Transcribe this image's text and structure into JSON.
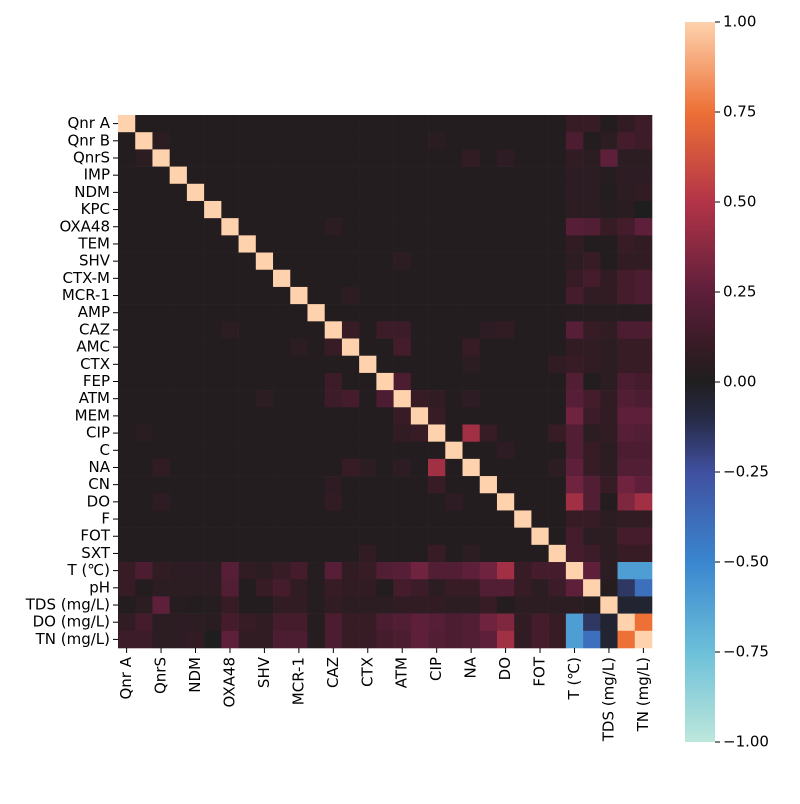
{
  "chart_data": {
    "type": "heatmap",
    "x_categories": [
      "Qnr A",
      null,
      "QnrS",
      null,
      "NDM",
      null,
      "OXA48",
      null,
      "SHV",
      null,
      "MCR-1",
      null,
      "CAZ",
      null,
      "CTX",
      null,
      "ATM",
      null,
      "CIP",
      null,
      "NA",
      null,
      "DO",
      null,
      "FOT",
      null,
      "T  (℃)",
      null,
      "TDS (mg/L)",
      null,
      "TN (mg/L)"
    ],
    "y_categories": [
      "Qnr A",
      "Qnr B",
      "QnrS",
      "IMP",
      "NDM",
      "KPC",
      "OXA48",
      "TEM",
      "SHV",
      "CTX-M",
      "MCR-1",
      "AMP",
      "CAZ",
      "AMC",
      "CTX",
      "FEP",
      "ATM",
      "MEM",
      "CIP",
      "C",
      "NA",
      "CN",
      "DO",
      "F",
      "FOT",
      "SXT",
      "T  (℃)",
      "pH",
      "TDS (mg/L)",
      "DO (mg/L)",
      "TN (mg/L)"
    ],
    "values": [
      [
        1,
        0.02,
        0.02,
        0.02,
        0.02,
        0.02,
        0.02,
        0.02,
        0.02,
        0.02,
        0.02,
        0.02,
        0.02,
        0.02,
        0.02,
        0.02,
        0.02,
        0.02,
        0.02,
        0.02,
        0.02,
        0.02,
        0.02,
        0.02,
        0.02,
        0.02,
        0.1,
        0.1,
        0.02,
        0.08,
        0.12
      ],
      [
        0.02,
        1,
        0.05,
        0.02,
        0.02,
        0.02,
        0.02,
        0.02,
        0.02,
        0.02,
        0.02,
        0.02,
        0.02,
        0.02,
        0.02,
        0.02,
        0.02,
        0.02,
        0.04,
        0.02,
        0.02,
        0.02,
        0.02,
        0.02,
        0.02,
        0.02,
        0.18,
        0.02,
        0.05,
        0.15,
        0.12
      ],
      [
        0.02,
        0.05,
        1,
        0.02,
        0.02,
        0.02,
        0.02,
        0.02,
        0.02,
        0.02,
        0.02,
        0.02,
        0.02,
        0.02,
        0.02,
        0.02,
        0.02,
        0.02,
        0.02,
        0.02,
        0.08,
        0.02,
        0.06,
        0.02,
        0.02,
        0.02,
        0.08,
        0.05,
        0.25,
        0.05,
        0.05
      ],
      [
        0.02,
        0.02,
        0.02,
        1,
        0.02,
        0.02,
        0.02,
        0.02,
        0.02,
        0.02,
        0.02,
        0.02,
        0.02,
        0.02,
        0.02,
        0.02,
        0.02,
        0.02,
        0.02,
        0.02,
        0.02,
        0.02,
        0.02,
        0.02,
        0.02,
        0.02,
        0.06,
        0.05,
        0.03,
        0.06,
        0.06
      ],
      [
        0.02,
        0.02,
        0.02,
        0.02,
        1,
        0.02,
        0.02,
        0.02,
        0.02,
        0.02,
        0.02,
        0.02,
        0.02,
        0.02,
        0.02,
        0.02,
        0.02,
        0.02,
        0.02,
        0.02,
        0.02,
        0.02,
        0.02,
        0.02,
        0.02,
        0.02,
        0.06,
        0.05,
        0.02,
        0.05,
        0.08
      ],
      [
        0.02,
        0.02,
        0.02,
        0.02,
        0.02,
        1,
        0.02,
        0.02,
        0.02,
        0.02,
        0.02,
        0.02,
        0.02,
        0.02,
        0.02,
        0.02,
        0.02,
        0.02,
        0.02,
        0.02,
        0.02,
        0.02,
        0.02,
        0.02,
        0.02,
        0.02,
        0.05,
        0.05,
        0.03,
        0.04,
        0
      ],
      [
        0.02,
        0.02,
        0.02,
        0.02,
        0.02,
        0.02,
        1,
        0.02,
        0.02,
        0.02,
        0.02,
        0.02,
        0.05,
        0.02,
        0.02,
        0.02,
        0.02,
        0.02,
        0.02,
        0.02,
        0.02,
        0.02,
        0.02,
        0.02,
        0.02,
        0.02,
        0.22,
        0.2,
        0.1,
        0.15,
        0.25
      ],
      [
        0.02,
        0.02,
        0.02,
        0.02,
        0.02,
        0.02,
        0.02,
        1,
        0.02,
        0.02,
        0.02,
        0.02,
        0.02,
        0.02,
        0.02,
        0.02,
        0.02,
        0.02,
        0.02,
        0.02,
        0.02,
        0.02,
        0.02,
        0.02,
        0.02,
        0.02,
        0.08,
        0.02,
        0.02,
        0.1,
        0.08
      ],
      [
        0.02,
        0.02,
        0.02,
        0.02,
        0.02,
        0.02,
        0.02,
        0.02,
        1,
        0.02,
        0.02,
        0.02,
        0.02,
        0.02,
        0.02,
        0.02,
        0.05,
        0.02,
        0.02,
        0.02,
        0.02,
        0.02,
        0.02,
        0.02,
        0.02,
        0.02,
        0.05,
        0.1,
        0.02,
        0.08,
        0.08
      ],
      [
        0.02,
        0.02,
        0.02,
        0.02,
        0.02,
        0.02,
        0.02,
        0.02,
        0.02,
        1,
        0.02,
        0.02,
        0.02,
        0.02,
        0.02,
        0.02,
        0.02,
        0.02,
        0.02,
        0.02,
        0.02,
        0.02,
        0.02,
        0.02,
        0.02,
        0.02,
        0.1,
        0.15,
        0.08,
        0.15,
        0.18
      ],
      [
        0.02,
        0.02,
        0.02,
        0.02,
        0.02,
        0.02,
        0.02,
        0.02,
        0.02,
        0.02,
        1,
        0.02,
        0.02,
        0.05,
        0.02,
        0.02,
        0.02,
        0.02,
        0.02,
        0.02,
        0.02,
        0.02,
        0.02,
        0.02,
        0.02,
        0.02,
        0.15,
        0.08,
        0.08,
        0.15,
        0.18
      ],
      [
        0.02,
        0.02,
        0.02,
        0.02,
        0.02,
        0.02,
        0.02,
        0.02,
        0.02,
        0.02,
        0.02,
        1,
        0.02,
        0.02,
        0.02,
        0.02,
        0.02,
        0.02,
        0.02,
        0.02,
        0.02,
        0.02,
        0.02,
        0.02,
        0.02,
        0.02,
        0.03,
        0.03,
        0.03,
        0.03,
        0.03
      ],
      [
        0.02,
        0.02,
        0.02,
        0.02,
        0.02,
        0.02,
        0.05,
        0.02,
        0.02,
        0.02,
        0.02,
        0.02,
        1,
        0.1,
        0.02,
        0.12,
        0.12,
        0.02,
        0.02,
        0.02,
        0.02,
        0.06,
        0.08,
        0.02,
        0.02,
        0.02,
        0.22,
        0.1,
        0.08,
        0.18,
        0.18
      ],
      [
        0.02,
        0.02,
        0.02,
        0.02,
        0.02,
        0.02,
        0.02,
        0.02,
        0.02,
        0.02,
        0.05,
        0.02,
        0.1,
        1,
        0.02,
        0.02,
        0.15,
        0.02,
        0.02,
        0.02,
        0.1,
        0.02,
        0.02,
        0.02,
        0.02,
        0.02,
        0.08,
        0.08,
        0.05,
        0.1,
        0.1
      ],
      [
        0.02,
        0.02,
        0.02,
        0.02,
        0.02,
        0.02,
        0.02,
        0.02,
        0.02,
        0.02,
        0.02,
        0.02,
        0.02,
        0.02,
        1,
        0.02,
        0.02,
        0.02,
        0.02,
        0.02,
        0.05,
        0.02,
        0.02,
        0.02,
        0.02,
        0.08,
        0.1,
        0.08,
        0.05,
        0.1,
        0.1
      ],
      [
        0.02,
        0.02,
        0.02,
        0.02,
        0.02,
        0.02,
        0.02,
        0.02,
        0.02,
        0.02,
        0.02,
        0.02,
        0.12,
        0.02,
        0.02,
        1,
        0.18,
        0.02,
        0.02,
        0.02,
        0.02,
        0.02,
        0.02,
        0.02,
        0.02,
        0.02,
        0.2,
        0.02,
        0.05,
        0.18,
        0.15
      ],
      [
        0.02,
        0.02,
        0.02,
        0.02,
        0.02,
        0.02,
        0.02,
        0.02,
        0.05,
        0.02,
        0.02,
        0.02,
        0.12,
        0.15,
        0.02,
        0.18,
        1,
        0.1,
        0.08,
        0.02,
        0.06,
        0.02,
        0.02,
        0.02,
        0.02,
        0.02,
        0.22,
        0.15,
        0.08,
        0.2,
        0.18
      ],
      [
        0.02,
        0.02,
        0.02,
        0.02,
        0.02,
        0.02,
        0.02,
        0.02,
        0.02,
        0.02,
        0.02,
        0.02,
        0.02,
        0.02,
        0.02,
        0.02,
        0.1,
        1,
        0.1,
        0.02,
        0.02,
        0.02,
        0.02,
        0.02,
        0.02,
        0.02,
        0.3,
        0.12,
        0.08,
        0.25,
        0.25
      ],
      [
        0.02,
        0.04,
        0.02,
        0.02,
        0.02,
        0.02,
        0.02,
        0.02,
        0.02,
        0.02,
        0.02,
        0.02,
        0.02,
        0.02,
        0.02,
        0.02,
        0.08,
        0.1,
        1,
        0.02,
        0.45,
        0.1,
        0.02,
        0.02,
        0.02,
        0.1,
        0.2,
        0.05,
        0.08,
        0.22,
        0.2
      ],
      [
        0.02,
        0.02,
        0.02,
        0.02,
        0.02,
        0.02,
        0.02,
        0.02,
        0.02,
        0.02,
        0.02,
        0.02,
        0.02,
        0.02,
        0.02,
        0.02,
        0.02,
        0.02,
        0.02,
        1,
        0.02,
        0.02,
        0.06,
        0.02,
        0.02,
        0.02,
        0.2,
        0.1,
        0.05,
        0.18,
        0.18
      ],
      [
        0.02,
        0.02,
        0.08,
        0.02,
        0.02,
        0.02,
        0.02,
        0.02,
        0.02,
        0.02,
        0.02,
        0.02,
        0.02,
        0.1,
        0.05,
        0.02,
        0.06,
        0.02,
        0.45,
        0.02,
        1,
        0.02,
        0.02,
        0.02,
        0.02,
        0.05,
        0.25,
        0.1,
        0.05,
        0.2,
        0.2
      ],
      [
        0.02,
        0.02,
        0.02,
        0.02,
        0.02,
        0.02,
        0.02,
        0.02,
        0.02,
        0.02,
        0.02,
        0.02,
        0.06,
        0.02,
        0.02,
        0.02,
        0.02,
        0.02,
        0.1,
        0.02,
        0.02,
        1,
        0.02,
        0.02,
        0.02,
        0.02,
        0.3,
        0.2,
        0.1,
        0.3,
        0.25
      ],
      [
        0.02,
        0.02,
        0.06,
        0.02,
        0.02,
        0.02,
        0.02,
        0.02,
        0.02,
        0.02,
        0.02,
        0.02,
        0.08,
        0.02,
        0.02,
        0.02,
        0.02,
        0.02,
        0.02,
        0.06,
        0.02,
        0.02,
        1,
        0.02,
        0.02,
        0.02,
        0.45,
        0.2,
        0.02,
        0.35,
        0.45
      ],
      [
        0.02,
        0.02,
        0.02,
        0.02,
        0.02,
        0.02,
        0.02,
        0.02,
        0.02,
        0.02,
        0.02,
        0.02,
        0.02,
        0.02,
        0.02,
        0.02,
        0.02,
        0.02,
        0.02,
        0.02,
        0.02,
        0.02,
        0.02,
        1,
        0.02,
        0.02,
        0.1,
        0.1,
        0.05,
        0.08,
        0.08
      ],
      [
        0.02,
        0.02,
        0.02,
        0.02,
        0.02,
        0.02,
        0.02,
        0.02,
        0.02,
        0.02,
        0.02,
        0.02,
        0.02,
        0.02,
        0.02,
        0.02,
        0.02,
        0.02,
        0.02,
        0.02,
        0.02,
        0.02,
        0.02,
        0.02,
        1,
        0.02,
        0.15,
        0.05,
        0.05,
        0.15,
        0.15
      ],
      [
        0.02,
        0.02,
        0.02,
        0.02,
        0.02,
        0.02,
        0.02,
        0.02,
        0.02,
        0.02,
        0.02,
        0.02,
        0.02,
        0.02,
        0.08,
        0.02,
        0.02,
        0.02,
        0.1,
        0.02,
        0.05,
        0.02,
        0.02,
        0.02,
        0.02,
        1,
        0.15,
        0.12,
        0.05,
        0.1,
        0.1
      ],
      [
        0.1,
        0.18,
        0.08,
        0.06,
        0.06,
        0.05,
        0.22,
        0.08,
        0.05,
        0.1,
        0.15,
        0.03,
        0.22,
        0.08,
        0.1,
        0.2,
        0.22,
        0.3,
        0.2,
        0.2,
        0.25,
        0.3,
        0.45,
        0.1,
        0.15,
        0.15,
        1,
        0.25,
        0.05,
        -0.6,
        -0.6
      ],
      [
        0.1,
        0.02,
        0.05,
        0.05,
        0.05,
        0.05,
        0.2,
        0.02,
        0.1,
        0.15,
        0.08,
        0.03,
        0.1,
        0.08,
        0.08,
        0.02,
        0.15,
        0.12,
        0.05,
        0.1,
        0.1,
        0.2,
        0.2,
        0.1,
        0.05,
        0.12,
        0.25,
        1,
        0.03,
        -0.15,
        -0.4
      ],
      [
        0.02,
        0.05,
        0.25,
        0.03,
        0.02,
        0.03,
        0.1,
        0.02,
        0.02,
        0.08,
        0.08,
        0.03,
        0.08,
        0.05,
        0.05,
        0.05,
        0.08,
        0.08,
        0.08,
        0.05,
        0.05,
        0.1,
        0.02,
        0.05,
        0.05,
        0.05,
        0.05,
        0.03,
        1,
        -0.05,
        -0.05
      ],
      [
        0.08,
        0.15,
        0.05,
        0.06,
        0.05,
        0.04,
        0.15,
        0.1,
        0.08,
        0.15,
        0.15,
        0.03,
        0.18,
        0.1,
        0.1,
        0.18,
        0.2,
        0.25,
        0.22,
        0.18,
        0.2,
        0.3,
        0.35,
        0.08,
        0.15,
        0.1,
        -0.6,
        -0.15,
        -0.05,
        1,
        0.75
      ],
      [
        0.12,
        0.12,
        0.05,
        0.06,
        0.08,
        0,
        0.25,
        0.08,
        0.08,
        0.18,
        0.18,
        0.03,
        0.18,
        0.1,
        0.1,
        0.15,
        0.18,
        0.25,
        0.2,
        0.18,
        0.2,
        0.25,
        0.45,
        0.08,
        0.15,
        0.1,
        -0.6,
        -0.4,
        -0.05,
        0.75,
        1
      ]
    ],
    "zlim": [
      -1,
      1
    ],
    "zticks": [
      {
        "value": 1,
        "label": "1.00"
      },
      {
        "value": 0.75,
        "label": "0.75"
      },
      {
        "value": 0.5,
        "label": "0.50"
      },
      {
        "value": 0.25,
        "label": "0.25"
      },
      {
        "value": 0,
        "label": "0.00"
      },
      {
        "value": -0.25,
        "label": "−0.25"
      },
      {
        "value": -0.5,
        "label": "−0.50"
      },
      {
        "value": -0.75,
        "label": "−0.75"
      },
      {
        "value": -1,
        "label": "−1.00"
      }
    ]
  }
}
